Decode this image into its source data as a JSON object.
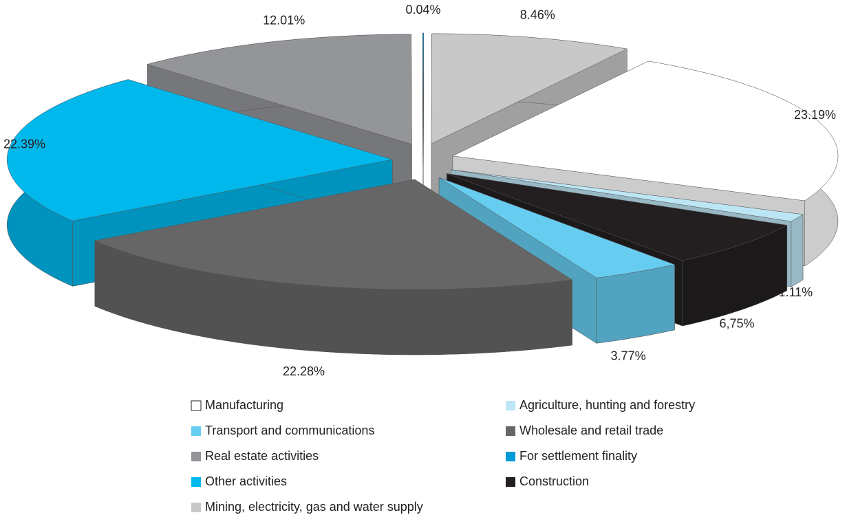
{
  "chart_data": {
    "type": "pie",
    "categories": [
      "Manufacturing",
      "Agriculture, hunting and forestry",
      "Transport and communications",
      "Wholesale and retail trade",
      "Real estate activities",
      "For settlement finality",
      "Other activities",
      "Construction",
      "Mining, electricity, gas and water supply"
    ],
    "values": [
      23.19,
      1.11,
      3.77,
      22.28,
      12.01,
      0.04,
      22.39,
      6.75,
      8.46
    ],
    "value_labels": [
      "23.19%",
      "1.11%",
      "3.77%",
      "22.28%",
      "12.01%",
      "0.04%",
      "22.39%",
      "6,75%",
      "8.46%"
    ],
    "colors": [
      "#ffffff",
      "#bde6f5",
      "#66ccf0",
      "#666666",
      "#939598",
      "#0099d8",
      "#00b8ec",
      "#231f20",
      "#c8c8c8"
    ]
  }
}
